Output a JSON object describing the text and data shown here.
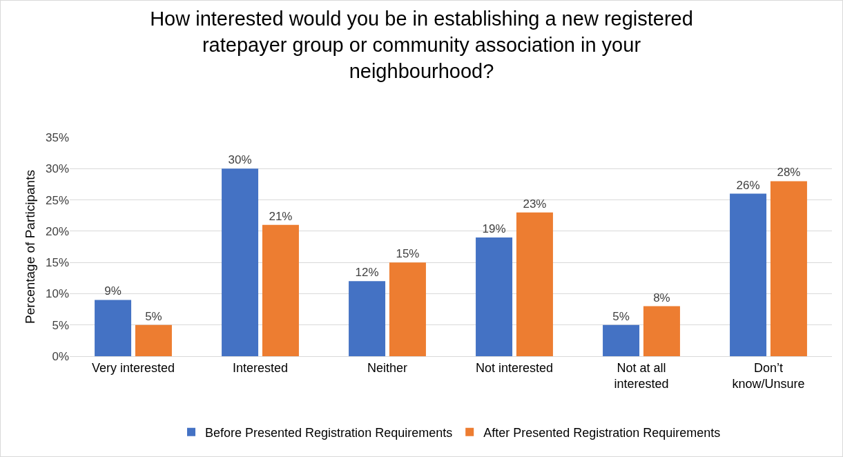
{
  "chart_data": {
    "type": "bar",
    "title": "How interested would you be in establishing a new registered ratepayer group or community association in your neighbourhood?",
    "ylabel": "Percentage of Participants",
    "categories": [
      "Very interested",
      "Interested",
      "Neither",
      "Not interested",
      "Not at all interested",
      "Don’t know/Unsure"
    ],
    "series": [
      {
        "name": "Before Presented Registration Requirements",
        "color": "#4472c4",
        "values": [
          9,
          30,
          12,
          19,
          5,
          26
        ],
        "value_labels": [
          "9%",
          "30%",
          "12%",
          "19%",
          "5%",
          "26%"
        ]
      },
      {
        "name": "After Presented Registration Requirements",
        "color": "#ed7d31",
        "values": [
          5,
          21,
          15,
          23,
          8,
          28
        ],
        "value_labels": [
          "5%",
          "21%",
          "15%",
          "23%",
          "8%",
          "28%"
        ]
      }
    ],
    "ylim": [
      0,
      35
    ],
    "yticks": [
      {
        "value": 0,
        "label": "0%"
      },
      {
        "value": 5,
        "label": "5%"
      },
      {
        "value": 10,
        "label": "10%"
      },
      {
        "value": 15,
        "label": "15%"
      },
      {
        "value": 20,
        "label": "20%"
      },
      {
        "value": 25,
        "label": "25%"
      },
      {
        "value": 30,
        "label": "30%"
      },
      {
        "value": 35,
        "label": "35%"
      }
    ],
    "grid": "y",
    "legend": "bottom"
  }
}
